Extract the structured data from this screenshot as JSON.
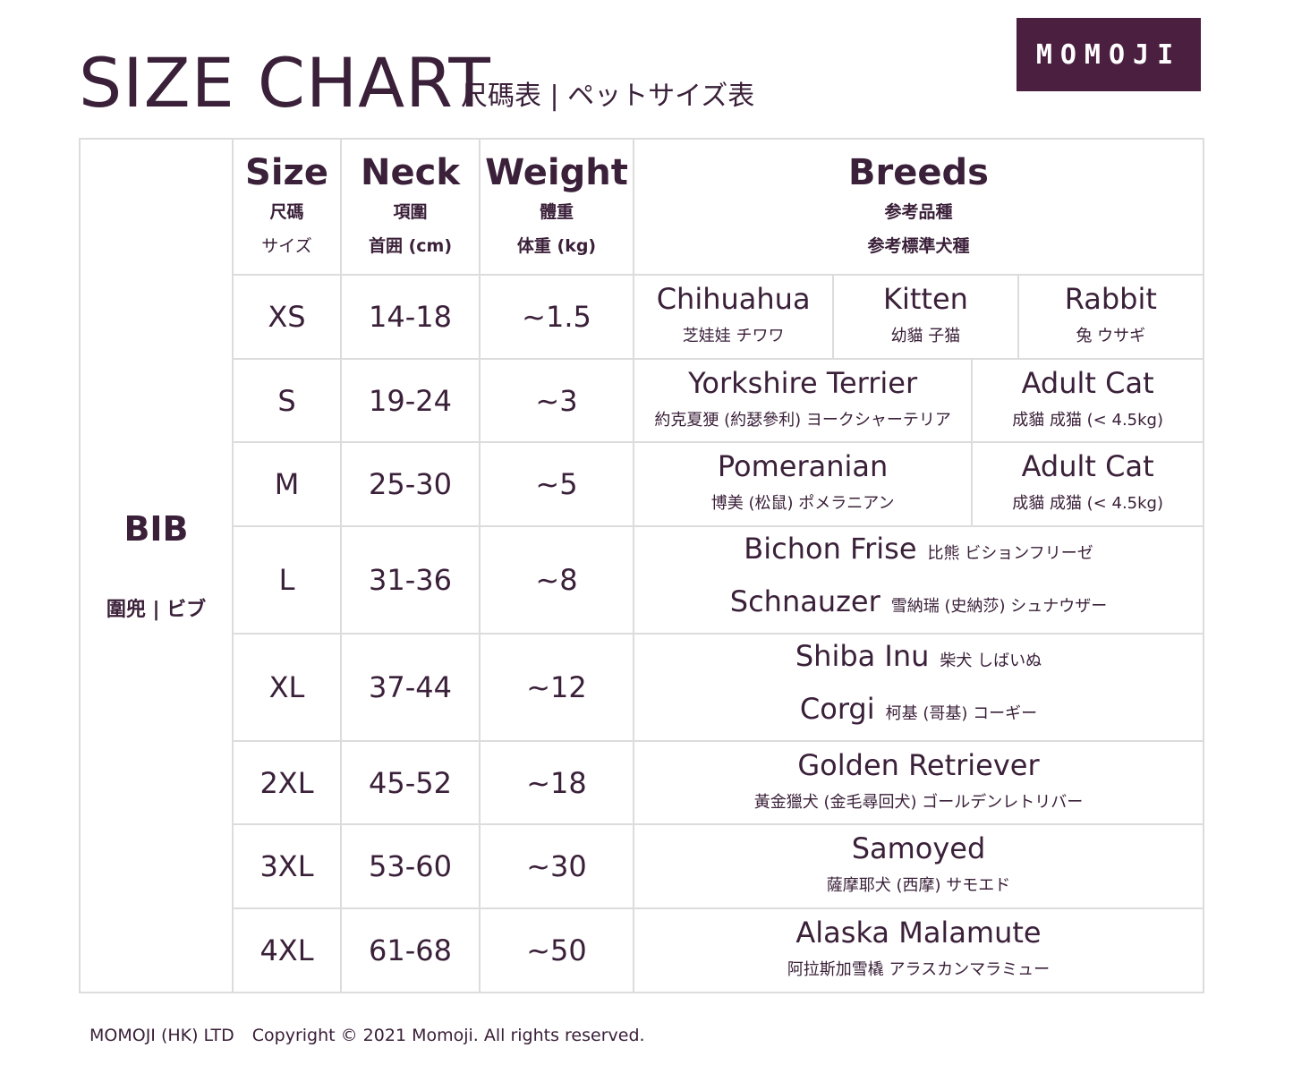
{
  "header": {
    "title": "SIZE CHART",
    "subtitle": "尺碼表 | ペットサイズ表",
    "logo": "MOMOJI"
  },
  "product": {
    "name": "BIB",
    "name_local": "圍兜 | ビブ"
  },
  "columns": [
    {
      "label": "Size",
      "sub1": "尺碼",
      "sub2": "サイズ"
    },
    {
      "label": "Neck",
      "sub1": "項圍",
      "sub2": "首囲 (cm)"
    },
    {
      "label": "Weight",
      "sub1": "體重",
      "sub2": "体重 (kg)"
    },
    {
      "label": "Breeds",
      "sub1": "参考品種",
      "sub2": "参考標準犬種"
    }
  ],
  "rows": [
    {
      "size": "XS",
      "neck": "14-18",
      "weight": "~1.5",
      "layout": "split",
      "breeds": [
        {
          "en": "Chihuahua",
          "jp": "芝娃娃 チワワ"
        },
        {
          "en": "Kitten",
          "jp": "幼貓 子猫"
        },
        {
          "en": "Rabbit",
          "jp": "兔 ウサギ"
        }
      ]
    },
    {
      "size": "S",
      "neck": "19-24",
      "weight": "~3",
      "layout": "split",
      "breeds": [
        {
          "en": "Yorkshire Terrier",
          "jp": "約克夏㹴 (約瑟參利) ヨークシャーテリア"
        },
        {
          "en": "Adult Cat",
          "jp": "成貓 成猫 (< 4.5kg)"
        }
      ]
    },
    {
      "size": "M",
      "neck": "25-30",
      "weight": "~5",
      "layout": "split",
      "breeds": [
        {
          "en": "Pomeranian",
          "jp": "博美 (松鼠) ポメラニアン"
        },
        {
          "en": "Adult Cat",
          "jp": "成貓 成猫 (< 4.5kg)"
        }
      ]
    },
    {
      "size": "L",
      "neck": "31-36",
      "weight": "~8",
      "layout": "inline",
      "breeds": [
        {
          "en": "Bichon Frise",
          "jp": "比熊 ビションフリーゼ"
        },
        {
          "en": "Schnauzer",
          "jp": "雪納瑞 (史納莎) シュナウザー"
        }
      ]
    },
    {
      "size": "XL",
      "neck": "37-44",
      "weight": "~12",
      "layout": "inline",
      "breeds": [
        {
          "en": "Shiba Inu",
          "jp": "柴犬 しばいぬ"
        },
        {
          "en": "Corgi",
          "jp": "柯基 (哥基) コーギー"
        }
      ]
    },
    {
      "size": "2XL",
      "neck": "45-52",
      "weight": "~18",
      "layout": "split",
      "breeds": [
        {
          "en": "Golden Retriever",
          "jp": "黃金獵犬 (金毛尋回犬) ゴールデンレトリバー"
        }
      ]
    },
    {
      "size": "3XL",
      "neck": "53-60",
      "weight": "~30",
      "layout": "split",
      "breeds": [
        {
          "en": "Samoyed",
          "jp": "薩摩耶犬 (西摩) サモエド"
        }
      ]
    },
    {
      "size": "4XL",
      "neck": "61-68",
      "weight": "~50",
      "layout": "split",
      "breeds": [
        {
          "en": "Alaska Malamute",
          "jp": "阿拉斯加雪橇 アラスカンマラミュー"
        }
      ]
    }
  ],
  "footer": {
    "company": "MOMOJI (HK) LTD",
    "copyright": "Copyright © 2021 Momoji. All rights reserved."
  }
}
